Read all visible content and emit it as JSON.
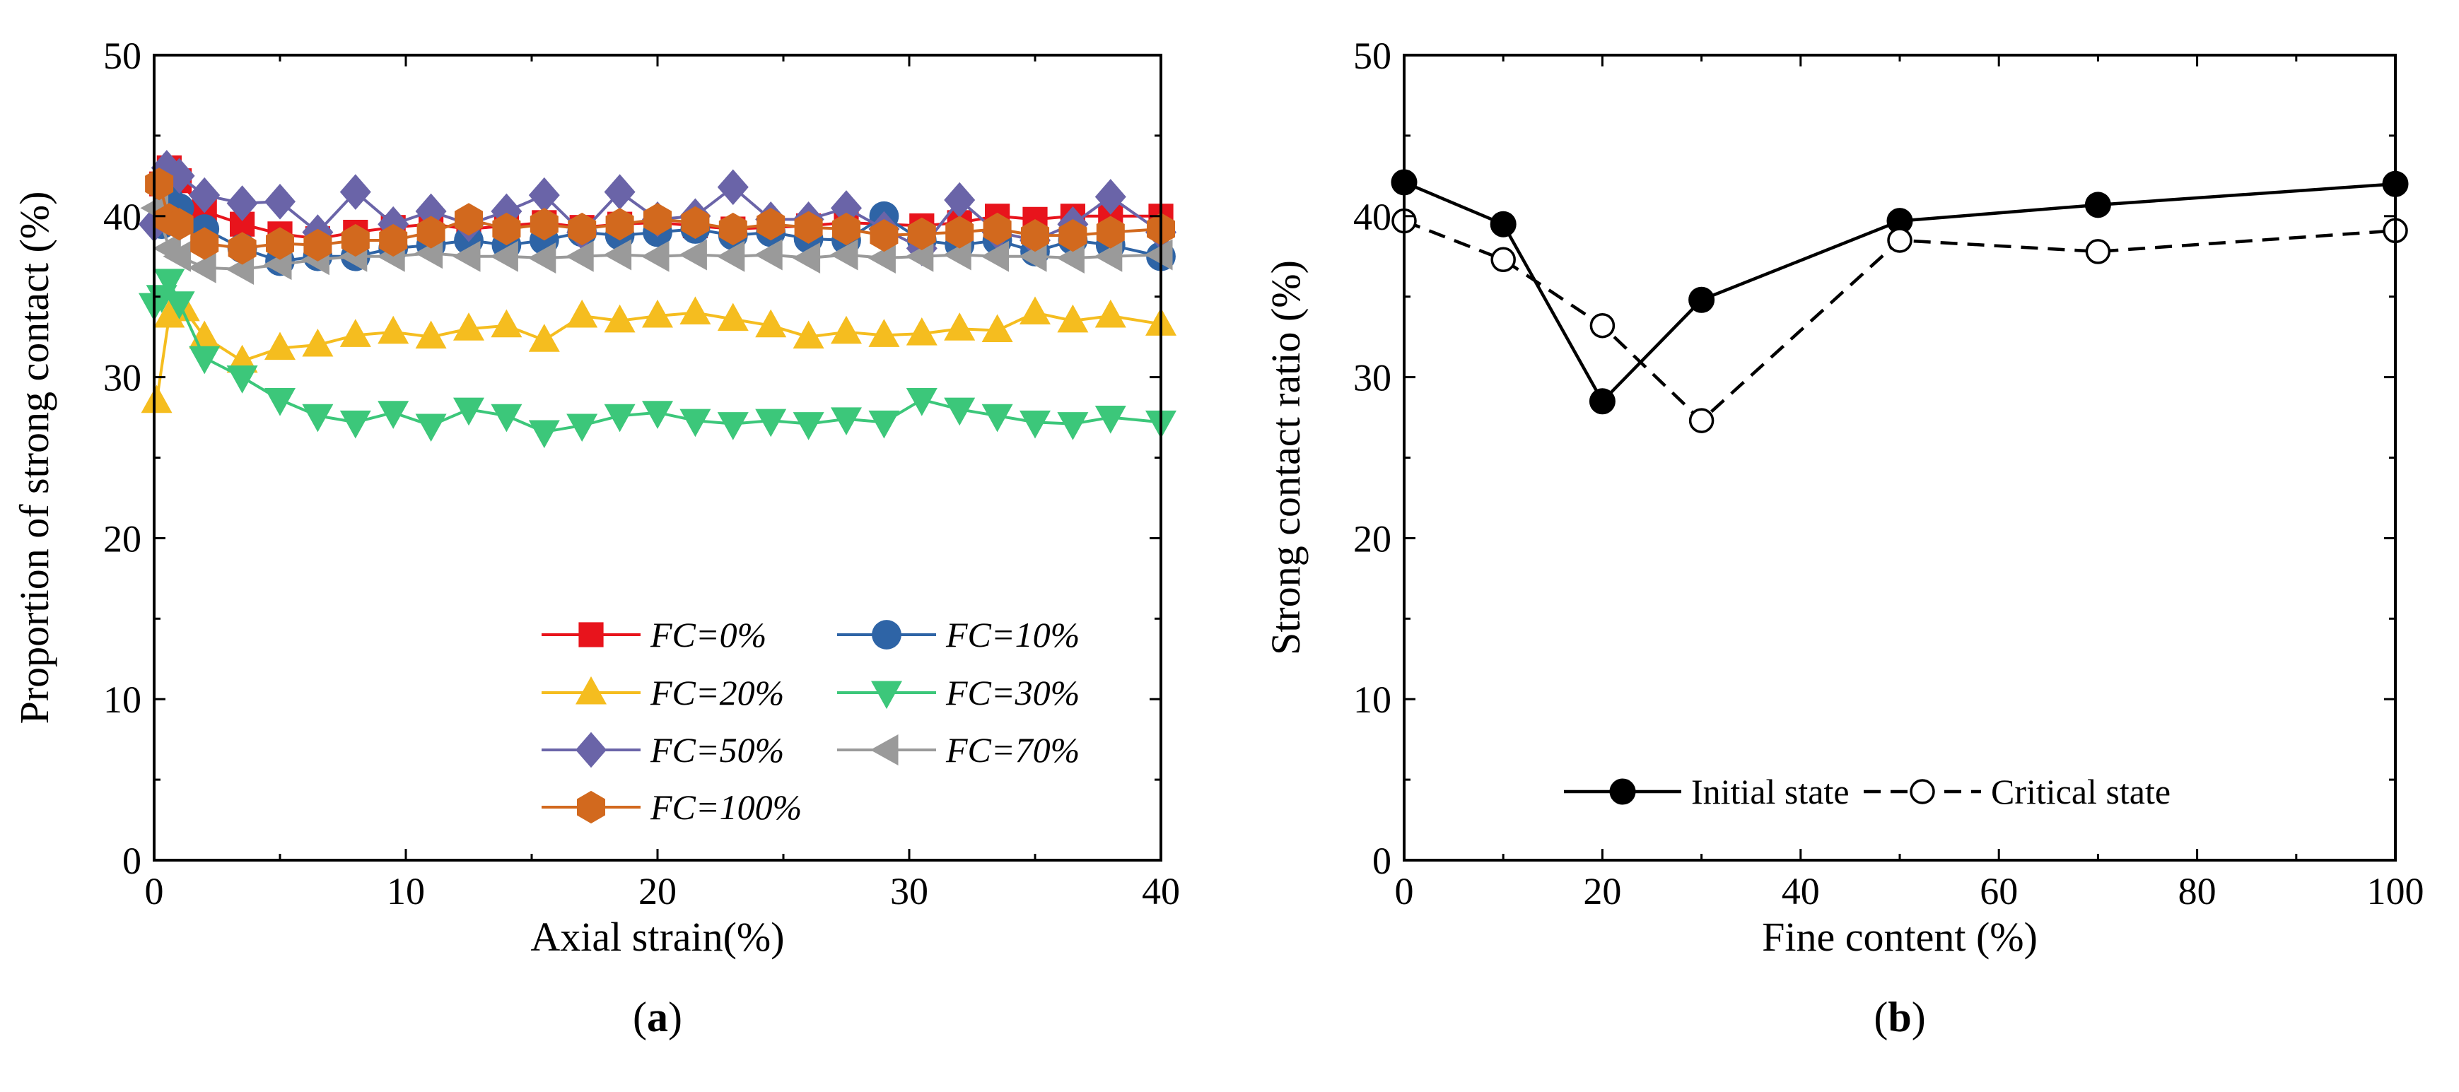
{
  "chart_data": [
    {
      "panel_label": "(a)",
      "panel_letter": "a",
      "type": "line",
      "xlabel": "Axial strain(%)",
      "ylabel": "Proportion of strong contact (%)",
      "xlim": [
        0,
        40
      ],
      "ylim": [
        0,
        50
      ],
      "x_ticks": [
        0,
        10,
        20,
        30,
        40
      ],
      "y_ticks": [
        0,
        10,
        20,
        30,
        40,
        50
      ],
      "x_tick_labels": [
        "0",
        "10",
        "20",
        "30",
        "40"
      ],
      "y_tick_labels": [
        "0",
        "10",
        "20",
        "30",
        "40",
        "50"
      ],
      "legend_position": "bottom-right",
      "series": [
        {
          "name": "FC=0%",
          "color": "#e8141c",
          "marker": "square",
          "x": [
            0.3,
            0.6,
            1.0,
            2.0,
            3.5,
            5.0,
            6.5,
            8.0,
            9.5,
            11.0,
            12.5,
            14.0,
            15.5,
            17.0,
            18.5,
            20.0,
            21.5,
            23.0,
            24.5,
            26.0,
            27.5,
            29.0,
            30.5,
            32.0,
            33.5,
            35.0,
            36.5,
            38.0,
            40.0
          ],
          "y": [
            42.0,
            43.0,
            42.2,
            40.3,
            39.5,
            38.9,
            38.6,
            39.0,
            39.3,
            39.5,
            39.2,
            39.4,
            39.6,
            39.3,
            39.5,
            39.6,
            39.4,
            39.2,
            39.3,
            39.4,
            39.6,
            39.5,
            39.4,
            39.6,
            40.0,
            39.8,
            40.0,
            40.0,
            40.0
          ]
        },
        {
          "name": "FC=10%",
          "color": "#2e64a6",
          "marker": "circle",
          "x": [
            0.3,
            0.6,
            1.0,
            2.0,
            3.5,
            5.0,
            6.5,
            8.0,
            9.5,
            11.0,
            12.5,
            14.0,
            15.5,
            17.0,
            18.5,
            20.0,
            21.5,
            23.0,
            24.5,
            26.0,
            27.5,
            29.0,
            30.5,
            32.0,
            33.5,
            35.0,
            36.5,
            38.0,
            40.0
          ],
          "y": [
            39.5,
            41.0,
            40.5,
            39.2,
            38.0,
            37.2,
            37.5,
            37.5,
            38.0,
            38.2,
            38.5,
            38.2,
            38.5,
            39.0,
            38.8,
            39.0,
            39.2,
            38.8,
            39.0,
            38.6,
            38.5,
            40.0,
            38.5,
            38.2,
            38.5,
            37.8,
            38.5,
            38.2,
            37.5
          ]
        },
        {
          "name": "FC=20%",
          "color": "#f5bd1f",
          "marker": "triangle-up",
          "x": [
            0.1,
            0.6,
            1.2,
            2.0,
            3.5,
            5.0,
            6.5,
            8.0,
            9.5,
            11.0,
            12.5,
            14.0,
            15.5,
            17.0,
            18.5,
            20.0,
            21.5,
            23.0,
            24.5,
            26.0,
            27.5,
            29.0,
            30.5,
            32.0,
            33.5,
            35.0,
            36.5,
            38.0,
            40.0
          ],
          "y": [
            28.5,
            33.8,
            34.2,
            32.5,
            31.0,
            31.8,
            32.0,
            32.6,
            32.8,
            32.5,
            33.0,
            33.2,
            32.3,
            33.8,
            33.5,
            33.8,
            34.0,
            33.6,
            33.2,
            32.5,
            32.8,
            32.6,
            32.7,
            33.0,
            32.9,
            34.0,
            33.5,
            33.8,
            33.3
          ]
        },
        {
          "name": "FC=30%",
          "color": "#3cc77a",
          "marker": "triangle-down",
          "x": [
            0.0,
            0.3,
            0.6,
            1.0,
            2.0,
            3.5,
            5.0,
            6.5,
            8.0,
            9.5,
            11.0,
            12.5,
            14.0,
            15.5,
            17.0,
            18.5,
            20.0,
            21.5,
            23.0,
            24.5,
            26.0,
            27.5,
            29.0,
            30.5,
            32.0,
            33.5,
            35.0,
            36.5,
            38.0,
            40.0
          ],
          "y": [
            34.5,
            35.0,
            36.0,
            34.6,
            31.2,
            30.0,
            28.6,
            27.6,
            27.2,
            27.8,
            27.0,
            28.0,
            27.6,
            26.6,
            27.0,
            27.6,
            27.8,
            27.3,
            27.1,
            27.3,
            27.1,
            27.4,
            27.2,
            28.6,
            28.0,
            27.6,
            27.2,
            27.1,
            27.5,
            27.2
          ]
        },
        {
          "name": "FC=50%",
          "color": "#6a64a8",
          "marker": "diamond",
          "x": [
            0.0,
            0.5,
            1.0,
            2.0,
            3.5,
            5.0,
            6.5,
            8.0,
            9.5,
            11.0,
            12.5,
            14.0,
            15.5,
            17.0,
            18.5,
            20.0,
            21.5,
            23.0,
            24.5,
            26.0,
            27.5,
            29.0,
            30.5,
            32.0,
            33.5,
            35.0,
            36.5,
            38.0,
            40.0
          ],
          "y": [
            39.5,
            43.0,
            42.5,
            41.3,
            40.8,
            40.9,
            39.0,
            41.5,
            39.5,
            40.3,
            39.5,
            40.3,
            41.3,
            39.0,
            41.5,
            39.8,
            40.0,
            41.8,
            39.8,
            39.8,
            40.5,
            39.2,
            38.0,
            41.0,
            39.0,
            38.5,
            39.5,
            41.2,
            39.0
          ]
        },
        {
          "name": "FC=70%",
          "color": "#9a9a9a",
          "marker": "triangle-left",
          "x": [
            0.1,
            0.6,
            1.0,
            2.0,
            3.5,
            5.0,
            6.5,
            8.0,
            9.5,
            11.0,
            12.5,
            14.0,
            15.5,
            17.0,
            18.5,
            20.0,
            21.5,
            23.0,
            24.5,
            26.0,
            27.5,
            29.0,
            30.5,
            32.0,
            33.5,
            35.0,
            36.5,
            38.0,
            40.0
          ],
          "y": [
            40.5,
            38.0,
            37.5,
            36.8,
            36.7,
            37.0,
            37.3,
            37.5,
            37.5,
            37.7,
            37.5,
            37.5,
            37.4,
            37.5,
            37.6,
            37.5,
            37.6,
            37.5,
            37.6,
            37.4,
            37.6,
            37.4,
            37.5,
            37.6,
            37.5,
            37.5,
            37.4,
            37.5,
            37.6
          ]
        },
        {
          "name": "FC=100%",
          "color": "#d2691e",
          "marker": "hexagon",
          "x": [
            0.2,
            0.6,
            1.0,
            2.0,
            3.5,
            5.0,
            6.5,
            8.0,
            9.5,
            11.0,
            12.5,
            14.0,
            15.5,
            17.0,
            18.5,
            20.0,
            21.5,
            23.0,
            24.5,
            26.0,
            27.5,
            29.0,
            30.5,
            32.0,
            33.5,
            35.0,
            36.5,
            38.0,
            40.0
          ],
          "y": [
            42.0,
            39.8,
            39.5,
            38.3,
            38.0,
            38.3,
            38.2,
            38.5,
            38.5,
            39.0,
            39.8,
            39.2,
            39.5,
            39.2,
            39.5,
            39.8,
            39.6,
            39.2,
            39.5,
            39.3,
            39.2,
            38.8,
            38.9,
            39.0,
            39.2,
            38.8,
            38.8,
            39.0,
            39.2
          ]
        }
      ]
    },
    {
      "panel_label": "(b)",
      "panel_letter": "b",
      "type": "line",
      "xlabel": "Fine content (%)",
      "ylabel": "Strong contact ratio (%)",
      "xlim": [
        0,
        100
      ],
      "ylim": [
        0,
        50
      ],
      "x_ticks": [
        0,
        20,
        40,
        60,
        80,
        100
      ],
      "y_ticks": [
        0,
        10,
        20,
        30,
        40,
        50
      ],
      "x_tick_labels": [
        "0",
        "20",
        "40",
        "60",
        "80",
        "100"
      ],
      "y_tick_labels": [
        "0",
        "10",
        "20",
        "30",
        "40",
        "50"
      ],
      "legend_position": "bottom-right",
      "series": [
        {
          "name": "Initial state",
          "color": "#000000",
          "marker": "filled-circle",
          "line": "solid",
          "x": [
            0,
            10,
            20,
            30,
            50,
            70,
            100
          ],
          "y": [
            42.1,
            39.5,
            28.5,
            34.8,
            39.7,
            40.7,
            42.0
          ]
        },
        {
          "name": "Critical state",
          "color": "#000000",
          "marker": "open-circle",
          "line": "dashed",
          "x": [
            0,
            10,
            20,
            30,
            50,
            70,
            100
          ],
          "y": [
            39.7,
            37.3,
            33.2,
            27.3,
            38.5,
            37.8,
            39.1
          ]
        }
      ]
    }
  ]
}
